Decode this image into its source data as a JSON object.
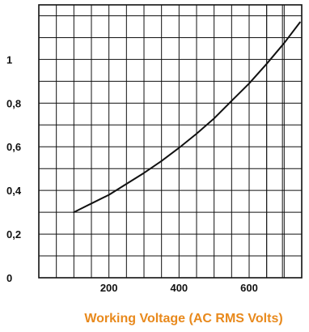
{
  "chart_data": {
    "type": "line",
    "title": "",
    "xlabel": "Working Voltage (AC RMS Volts)",
    "ylabel": "",
    "xlim": [
      0,
      750
    ],
    "ylim": [
      0,
      1.25
    ],
    "x_ticks": [
      {
        "value": 200,
        "label": "200"
      },
      {
        "value": 400,
        "label": "400"
      },
      {
        "value": 600,
        "label": "600"
      }
    ],
    "y_ticks": [
      {
        "value": 0,
        "label": "0"
      },
      {
        "value": 0.2,
        "label": "0,2"
      },
      {
        "value": 0.4,
        "label": "0,4"
      },
      {
        "value": 0.6,
        "label": "0,6"
      },
      {
        "value": 0.8,
        "label": "0,8"
      },
      {
        "value": 1,
        "label": "1"
      }
    ],
    "grid": true,
    "series": [
      {
        "x": [
          100,
          150,
          200,
          250,
          300,
          350,
          400,
          450,
          500,
          550,
          600,
          650,
          700,
          745
        ],
        "y": [
          0.3,
          0.34,
          0.38,
          0.43,
          0.48,
          0.535,
          0.595,
          0.66,
          0.73,
          0.81,
          0.89,
          0.98,
          1.075,
          1.17
        ]
      }
    ],
    "colors": {
      "line": "#111111",
      "grid": "#111111",
      "xlabel": "#e8891c"
    }
  }
}
